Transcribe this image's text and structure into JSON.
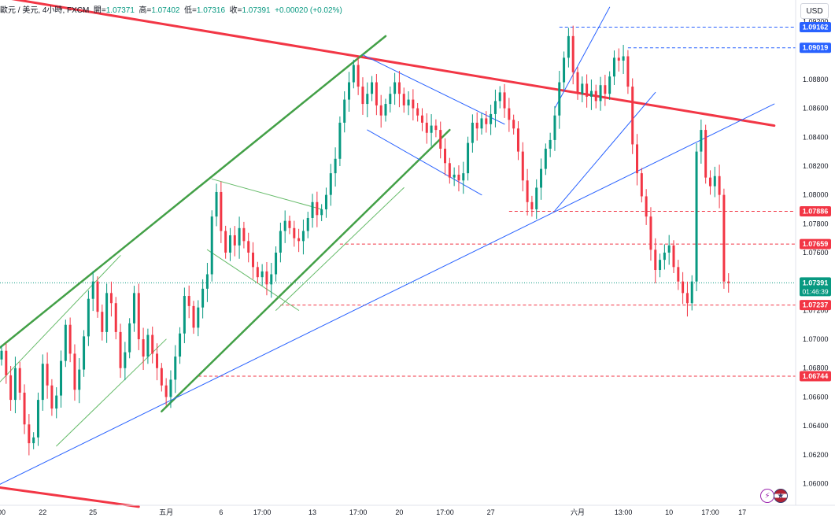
{
  "header": {
    "symbol": "歐元 / 美元, 4小時, FXCM",
    "open_label": "開",
    "open": "1.07371",
    "high_label": "高",
    "high": "1.07402",
    "low_label": "低",
    "low": "1.07316",
    "close_label": "收",
    "close": "1.07391",
    "change": "+0.00020 (+0.02%)"
  },
  "currency": "USD",
  "countdown": "01:46:39",
  "icons": {
    "flash": "flash-icon",
    "flag": "us-flag-icon"
  },
  "colors": {
    "up": "#089981",
    "down": "#f23645",
    "trend_red": "#f23645",
    "trend_green": "#43a047",
    "trend_blue": "#2962ff",
    "level_blue": "#2962ff",
    "level_red": "#f23645"
  },
  "chart_data": {
    "type": "candlestick",
    "ylim": [
      1.0585,
      1.0935
    ],
    "y_ticks": [
      "1.09200",
      "1.09000",
      "1.08800",
      "1.08600",
      "1.08400",
      "1.08200",
      "1.08000",
      "1.07800",
      "1.07600",
      "1.07400",
      "1.07200",
      "1.07000",
      "1.06800",
      "1.06600",
      "1.06400",
      "1.06200",
      "1.06000"
    ],
    "x_ticks": [
      {
        "label": "00",
        "bar": 0
      },
      {
        "label": "22",
        "bar": 9
      },
      {
        "label": "25",
        "bar": 20
      },
      {
        "label": "五月",
        "bar": 36
      },
      {
        "label": "6",
        "bar": 48
      },
      {
        "label": "17:00",
        "bar": 57
      },
      {
        "label": "13",
        "bar": 68
      },
      {
        "label": "17:00",
        "bar": 78
      },
      {
        "label": "20",
        "bar": 87
      },
      {
        "label": "17:00",
        "bar": 97
      },
      {
        "label": "27",
        "bar": 107
      },
      {
        "label": "六月",
        "bar": 126
      },
      {
        "label": "13:00",
        "bar": 136
      },
      {
        "label": "10",
        "bar": 146
      },
      {
        "label": "17:00",
        "bar": 155
      },
      {
        "label": "17",
        "bar": 162
      }
    ],
    "bar_count": 169,
    "price_levels": [
      {
        "label": "1.09162",
        "value": 1.09162,
        "kind": "blue",
        "from_bar": 122
      },
      {
        "label": "1.09019",
        "value": 1.09019,
        "kind": "blue",
        "from_bar": 137
      },
      {
        "label": "1.07886",
        "value": 1.07886,
        "kind": "red",
        "from_bar": 111
      },
      {
        "label": "1.07659",
        "value": 1.07659,
        "kind": "red",
        "from_bar": 74
      },
      {
        "label": "1.07237",
        "value": 1.07237,
        "kind": "red",
        "from_bar": 61
      },
      {
        "label": "1.06744",
        "value": 1.06744,
        "kind": "red",
        "from_bar": 43
      }
    ],
    "last_price": {
      "label": "1.07391",
      "value": 1.07391
    },
    "trendlines": [
      {
        "color": "red",
        "width": 3,
        "p1": [
          -2,
          1.0938
        ],
        "p2": [
          169,
          1.0848
        ]
      },
      {
        "color": "red",
        "width": 3,
        "p1": [
          -2,
          1.0598
        ],
        "p2": [
          30,
          1.0584
        ]
      },
      {
        "color": "green",
        "width": 2.5,
        "p1": [
          -2,
          1.069
        ],
        "p2": [
          84,
          1.091
        ]
      },
      {
        "color": "green",
        "width": 2.5,
        "p1": [
          35,
          1.065
        ],
        "p2": [
          98,
          1.0845
        ]
      },
      {
        "color": "green_thin",
        "width": 1,
        "p1": [
          12,
          1.0626
        ],
        "p2": [
          36,
          1.07
        ]
      },
      {
        "color": "green_thin",
        "width": 1,
        "p1": [
          -2,
          1.0665
        ],
        "p2": [
          26,
          1.0758
        ]
      },
      {
        "color": "green_thin",
        "width": 1,
        "p1": [
          46,
          1.0811
        ],
        "p2": [
          70,
          1.079
        ]
      },
      {
        "color": "green_thin",
        "width": 1,
        "p1": [
          45,
          1.0762
        ],
        "p2": [
          65,
          1.072
        ]
      },
      {
        "color": "green_thin",
        "width": 1,
        "p1": [
          60,
          1.072
        ],
        "p2": [
          88,
          1.0805
        ]
      },
      {
        "color": "blue",
        "width": 1,
        "p1": [
          -2,
          1.0597
        ],
        "p2": [
          169,
          1.0863
        ]
      },
      {
        "color": "blue",
        "width": 1,
        "p1": [
          79,
          1.0897
        ],
        "p2": [
          110,
          1.0849
        ]
      },
      {
        "color": "blue",
        "width": 1,
        "p1": [
          80,
          1.0845
        ],
        "p2": [
          105,
          1.08
        ]
      },
      {
        "color": "blue",
        "width": 1,
        "p1": [
          121,
          1.086
        ],
        "p2": [
          133,
          1.093
        ]
      },
      {
        "color": "blue",
        "width": 1,
        "p1": [
          121,
          1.0789
        ],
        "p2": [
          143,
          1.0871
        ]
      }
    ],
    "closes": [
      1.0692,
      1.0675,
      1.0658,
      1.068,
      1.0663,
      1.0641,
      1.0628,
      1.0632,
      1.0658,
      1.0683,
      1.0668,
      1.0652,
      1.0661,
      1.0685,
      1.071,
      1.069,
      1.0665,
      1.0679,
      1.0702,
      1.0728,
      1.074,
      1.0719,
      1.0705,
      1.0732,
      1.0725,
      1.0705,
      1.068,
      1.0691,
      1.0711,
      1.0732,
      1.07,
      1.0688,
      1.0703,
      1.069,
      1.068,
      1.0668,
      1.066,
      1.0672,
      1.0688,
      1.0704,
      1.073,
      1.0723,
      1.0708,
      1.0722,
      1.0735,
      1.0745,
      1.0785,
      1.0802,
      1.0775,
      1.076,
      1.0772,
      1.0765,
      1.0777,
      1.0768,
      1.076,
      1.075,
      1.0743,
      1.0747,
      1.0738,
      1.0745,
      1.076,
      1.0775,
      1.0782,
      1.0777,
      1.077,
      1.0768,
      1.0775,
      1.0784,
      1.0795,
      1.0786,
      1.079,
      1.08,
      1.0815,
      1.0825,
      1.085,
      1.0866,
      1.0878,
      1.089,
      1.0875,
      1.0863,
      1.087,
      1.0878,
      1.0862,
      1.0855,
      1.0863,
      1.087,
      1.0878,
      1.087,
      1.0862,
      1.0866,
      1.086,
      1.0855,
      1.085,
      1.0843,
      1.0848,
      1.0845,
      1.0832,
      1.0822,
      1.0812,
      1.0814,
      1.081,
      1.0815,
      1.0836,
      1.085,
      1.0846,
      1.0853,
      1.0849,
      1.0856,
      1.0865,
      1.0871,
      1.086,
      1.0852,
      1.0846,
      1.083,
      1.081,
      1.0795,
      1.079,
      1.0805,
      1.0818,
      1.0832,
      1.0838,
      1.0855,
      1.0878,
      1.0895,
      1.091,
      1.0885,
      1.087,
      1.0877,
      1.0868,
      1.0872,
      1.0865,
      1.0876,
      1.087,
      1.0882,
      1.0895,
      1.0893,
      1.0896,
      1.0875,
      1.0835,
      1.0815,
      1.0799,
      1.0785,
      1.0762,
      1.0748,
      1.0755,
      1.076,
      1.0765,
      1.075,
      1.074,
      1.0732,
      1.0725,
      1.074,
      1.083,
      1.0845,
      1.0812,
      1.0806,
      1.0813,
      1.08,
      1.074,
      1.0739
    ]
  }
}
